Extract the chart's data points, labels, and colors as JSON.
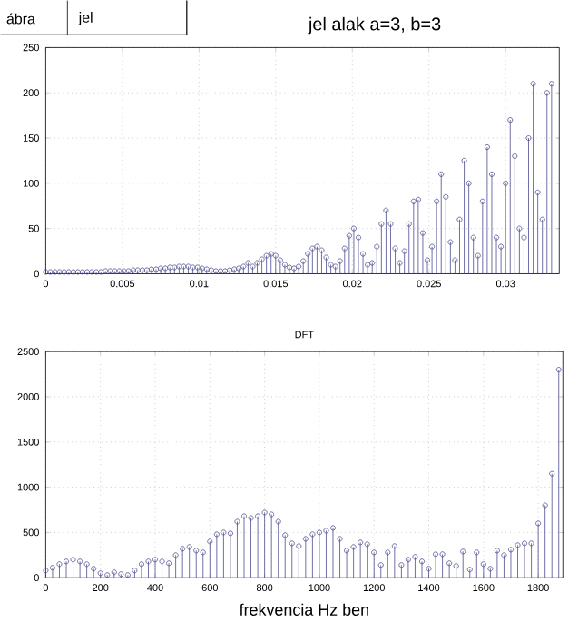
{
  "chart_data": [
    {
      "type": "lollipop",
      "title": "jel alak a=3, b=3",
      "annotations": [
        "ábra",
        "jel"
      ],
      "color": "#4b4b8f",
      "marker": "circle",
      "grid": true,
      "xlim": [
        0,
        0.0335
      ],
      "ylim": [
        0,
        250
      ],
      "xticks": [
        0,
        0.005,
        0.01,
        0.015,
        0.02,
        0.025,
        0.03
      ],
      "yticks": [
        0,
        50,
        100,
        150,
        200,
        250
      ],
      "x": [
        0,
        0.0003,
        0.0006,
        0.0009,
        0.0012,
        0.0015,
        0.0018,
        0.0021,
        0.0024,
        0.0027,
        0.003,
        0.0033,
        0.0036,
        0.0039,
        0.0042,
        0.0045,
        0.0048,
        0.0051,
        0.0054,
        0.0057,
        0.006,
        0.0063,
        0.0066,
        0.0069,
        0.0072,
        0.0075,
        0.0078,
        0.0081,
        0.0084,
        0.0087,
        0.009,
        0.0093,
        0.0096,
        0.0099,
        0.0102,
        0.0105,
        0.0108,
        0.0111,
        0.0114,
        0.0117,
        0.012,
        0.0123,
        0.0126,
        0.0129,
        0.0132,
        0.0135,
        0.0138,
        0.0141,
        0.0144,
        0.0147,
        0.015,
        0.0153,
        0.0156,
        0.0159,
        0.0162,
        0.0165,
        0.0168,
        0.0171,
        0.0174,
        0.0177,
        0.018,
        0.0183,
        0.0186,
        0.0189,
        0.0192,
        0.0195,
        0.0198,
        0.0201,
        0.0204,
        0.0207,
        0.021,
        0.0213,
        0.0216,
        0.0219,
        0.0222,
        0.0225,
        0.0228,
        0.0231,
        0.0234,
        0.0237,
        0.024,
        0.0243,
        0.0246,
        0.0249,
        0.0252,
        0.0255,
        0.0258,
        0.0261,
        0.0264,
        0.0267,
        0.027,
        0.0273,
        0.0276,
        0.0279,
        0.0282,
        0.0285,
        0.0288,
        0.0291,
        0.0294,
        0.0297,
        0.03,
        0.0303,
        0.0306,
        0.0309,
        0.0312,
        0.0315,
        0.0318,
        0.0321,
        0.0324,
        0.0327,
        0.033
      ],
      "values": [
        2,
        2,
        2,
        2,
        2,
        2,
        2,
        2,
        2,
        2,
        2,
        2,
        2,
        3,
        3,
        3,
        3,
        3,
        3,
        4,
        4,
        4,
        4,
        5,
        5,
        6,
        6,
        7,
        7,
        8,
        8,
        8,
        7,
        7,
        6,
        5,
        4,
        3,
        3,
        3,
        4,
        5,
        6,
        8,
        12,
        8,
        12,
        16,
        20,
        22,
        20,
        15,
        10,
        7,
        6,
        8,
        14,
        22,
        28,
        30,
        26,
        18,
        10,
        8,
        14,
        28,
        42,
        50,
        40,
        22,
        10,
        12,
        30,
        55,
        70,
        55,
        28,
        12,
        25,
        55,
        80,
        82,
        45,
        15,
        30,
        80,
        110,
        85,
        35,
        15,
        60,
        125,
        100,
        40,
        20,
        80,
        140,
        110,
        40,
        30,
        100,
        170,
        130,
        50,
        40,
        150,
        210,
        90,
        60,
        200,
        210
      ]
    },
    {
      "type": "lollipop",
      "title": "DFT",
      "xlabel": "frekvencia Hz ben",
      "color": "#4b4b8f",
      "marker": "circle",
      "grid": true,
      "xlim": [
        0,
        1890
      ],
      "ylim": [
        0,
        2500
      ],
      "xticks": [
        0,
        200,
        400,
        600,
        800,
        1000,
        1200,
        1400,
        1600,
        1800
      ],
      "yticks": [
        0,
        500,
        1000,
        1500,
        2000,
        2500
      ],
      "x": [
        0,
        25,
        50,
        75,
        100,
        125,
        150,
        175,
        200,
        225,
        250,
        275,
        300,
        325,
        350,
        375,
        400,
        425,
        450,
        475,
        500,
        525,
        550,
        575,
        600,
        625,
        650,
        675,
        700,
        725,
        750,
        775,
        800,
        825,
        850,
        875,
        900,
        925,
        950,
        975,
        1000,
        1025,
        1050,
        1075,
        1100,
        1125,
        1150,
        1175,
        1200,
        1225,
        1250,
        1275,
        1300,
        1325,
        1350,
        1375,
        1400,
        1425,
        1450,
        1475,
        1500,
        1525,
        1550,
        1575,
        1600,
        1625,
        1650,
        1675,
        1700,
        1725,
        1750,
        1775,
        1800,
        1825,
        1850,
        1875
      ],
      "values": [
        80,
        110,
        150,
        180,
        200,
        180,
        150,
        100,
        50,
        30,
        60,
        40,
        30,
        80,
        150,
        180,
        200,
        180,
        160,
        250,
        320,
        340,
        300,
        280,
        400,
        480,
        500,
        490,
        620,
        680,
        660,
        680,
        720,
        700,
        620,
        470,
        380,
        350,
        430,
        480,
        500,
        520,
        550,
        430,
        300,
        340,
        390,
        370,
        280,
        140,
        280,
        350,
        140,
        200,
        230,
        180,
        100,
        260,
        260,
        160,
        130,
        290,
        90,
        280,
        150,
        100,
        300,
        250,
        310,
        360,
        380,
        380,
        600,
        800,
        1150,
        2300
      ]
    }
  ]
}
